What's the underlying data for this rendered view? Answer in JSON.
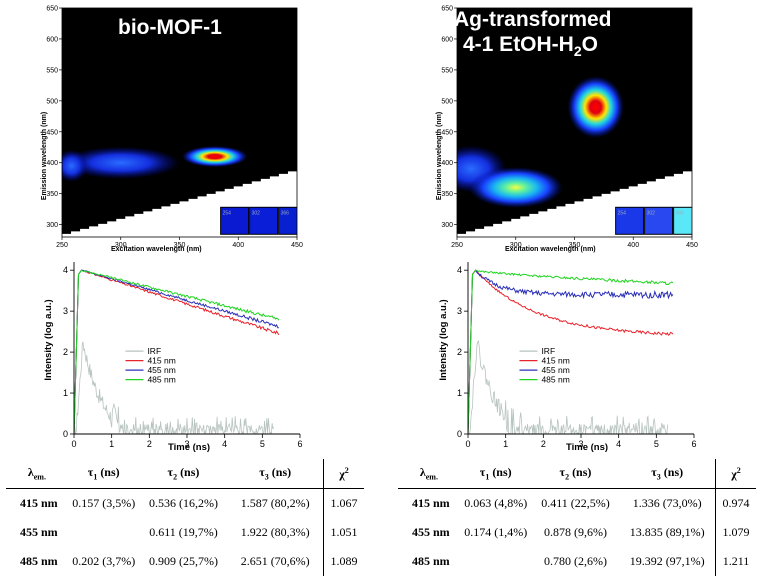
{
  "colors": {
    "irf": "#b8c4c0",
    "c415": "#e8232b",
    "c455": "#2a2fb8",
    "c485": "#22d422",
    "map_bg": "#000000"
  },
  "chart_data": [
    {
      "type": "heatmap",
      "panel": "left",
      "title": "bio-MOF-1",
      "xlabel": "Excitation wavelength (nm)",
      "ylabel": "Emission wavelength (nm)",
      "xlim": [
        250,
        450
      ],
      "ylim": [
        280,
        650
      ],
      "xticks": [
        "250",
        "300",
        "350",
        "400",
        "450"
      ],
      "yticks": [
        "300",
        "350",
        "400",
        "450",
        "500",
        "550",
        "600",
        "650"
      ],
      "inset_labels": [
        "254",
        "302",
        "366"
      ],
      "inset_colors": [
        "#0a1ad0",
        "#0a1ed8",
        "#0820d0"
      ],
      "hotspots": [
        {
          "x": 380,
          "y": 410,
          "rx": 28,
          "ry": 17,
          "peak": "red"
        },
        {
          "x": 300,
          "y": 400,
          "rx": 50,
          "ry": 26,
          "peak": "blue"
        },
        {
          "x": 258,
          "y": 395,
          "rx": 14,
          "ry": 26,
          "peak": "blue"
        }
      ]
    },
    {
      "type": "heatmap",
      "panel": "right",
      "title_line1": "Ag-transformed",
      "title_line2_pre": "4-1 EtOH-H",
      "title_line2_sub": "2",
      "title_line2_post": "O",
      "xlabel": "Excitation wavelength (nm)",
      "ylabel": "Emission wavelength (nm)",
      "xlim": [
        250,
        450
      ],
      "ylim": [
        280,
        650
      ],
      "xticks": [
        "250",
        "300",
        "350",
        "400",
        "450"
      ],
      "yticks": [
        "300",
        "350",
        "400",
        "450",
        "500",
        "550",
        "600",
        "650"
      ],
      "inset_labels": [
        "254",
        "302",
        "366"
      ],
      "inset_colors": [
        "#1a38e8",
        "#2a48f0",
        "#5ae8f8"
      ],
      "hotspots": [
        {
          "x": 368,
          "y": 490,
          "rx": 24,
          "ry": 50,
          "peak": "red"
        },
        {
          "x": 300,
          "y": 360,
          "rx": 40,
          "ry": 33,
          "peak": "cyan"
        },
        {
          "x": 262,
          "y": 390,
          "rx": 30,
          "ry": 38,
          "peak": "blue"
        }
      ]
    },
    {
      "type": "line",
      "panel": "left",
      "xlabel": "Time (ns)",
      "ylabel": "Intensity (log a.u.)",
      "xlim": [
        0,
        6
      ],
      "ylim": [
        0,
        4.2
      ],
      "xticks": [
        "0",
        "1",
        "2",
        "3",
        "4",
        "5",
        "6"
      ],
      "yticks": [
        "0",
        "1",
        "2",
        "3",
        "4"
      ],
      "series": [
        {
          "name": "IRF",
          "color_key": "irf"
        },
        {
          "name": "415 nm",
          "color_key": "c415",
          "end": 2.45
        },
        {
          "name": "455 nm",
          "color_key": "c455",
          "end": 2.62
        },
        {
          "name": "485 nm",
          "color_key": "c485",
          "end": 2.8
        }
      ]
    },
    {
      "type": "line",
      "panel": "right",
      "xlabel": "Time (ns)",
      "ylabel": "Intensity (log a.u.)",
      "xlim": [
        0,
        6
      ],
      "ylim": [
        0,
        4.2
      ],
      "xticks": [
        "0",
        "1",
        "2",
        "3",
        "4",
        "5",
        "6"
      ],
      "yticks": [
        "0",
        "1",
        "2",
        "3",
        "4"
      ],
      "series": [
        {
          "name": "IRF",
          "color_key": "irf"
        },
        {
          "name": "415 nm",
          "color_key": "c415",
          "end": 2.38
        },
        {
          "name": "455 nm",
          "color_key": "c455",
          "end": 3.4
        },
        {
          "name": "485 nm",
          "color_key": "c485",
          "end": 3.68
        }
      ]
    }
  ],
  "tables": [
    {
      "headers": {
        "lambda": "λ",
        "lambda_sub": "em.",
        "tau1": "τ",
        "tau1_sub": "1",
        "tau1_unit": " (ns)",
        "tau2": "τ",
        "tau2_sub": "2",
        "tau2_unit": " (ns)",
        "tau3": "τ",
        "tau3_sub": "3",
        "tau3_unit": " (ns)",
        "chi": "χ",
        "chi_sup": "2"
      },
      "rows": [
        {
          "label": "415 nm",
          "t1": "0.157 (3,5%)",
          "t2": "0.536 (16,2%)",
          "t3": "1.587 (80,2%)",
          "chi": "1.067"
        },
        {
          "label": "455 nm",
          "t1": "",
          "t2": "0.611 (19,7%)",
          "t3": "1.922 (80,3%)",
          "chi": "1.051"
        },
        {
          "label": "485 nm",
          "t1": "0.202 (3,7%)",
          "t2": "0.909 (25,7%)",
          "t3": "2.651 (70,6%)",
          "chi": "1.089"
        }
      ]
    },
    {
      "headers": {
        "lambda": "λ",
        "lambda_sub": "em.",
        "tau1": "τ",
        "tau1_sub": "1",
        "tau1_unit": " (ns)",
        "tau2": "τ",
        "tau2_sub": "2",
        "tau2_unit": " (ns)",
        "tau3": "τ",
        "tau3_sub": "3",
        "tau3_unit": " (ns)",
        "chi": "χ",
        "chi_sup": "2"
      },
      "rows": [
        {
          "label": "415 nm",
          "t1": "0.063 (4,8%)",
          "t2": "0.411 (22,5%)",
          "t3": "1.336 (73,0%)",
          "chi": "0.974"
        },
        {
          "label": "455 nm",
          "t1": "0.174 (1,4%)",
          "t2": "0.878 (9,6%)",
          "t3": "13.835 (89,1%)",
          "chi": "1.079"
        },
        {
          "label": "485 nm",
          "t1": "",
          "t2": "0.780 (2,6%)",
          "t3": "19.392 (97,1%)",
          "chi": "1.211"
        }
      ]
    }
  ]
}
